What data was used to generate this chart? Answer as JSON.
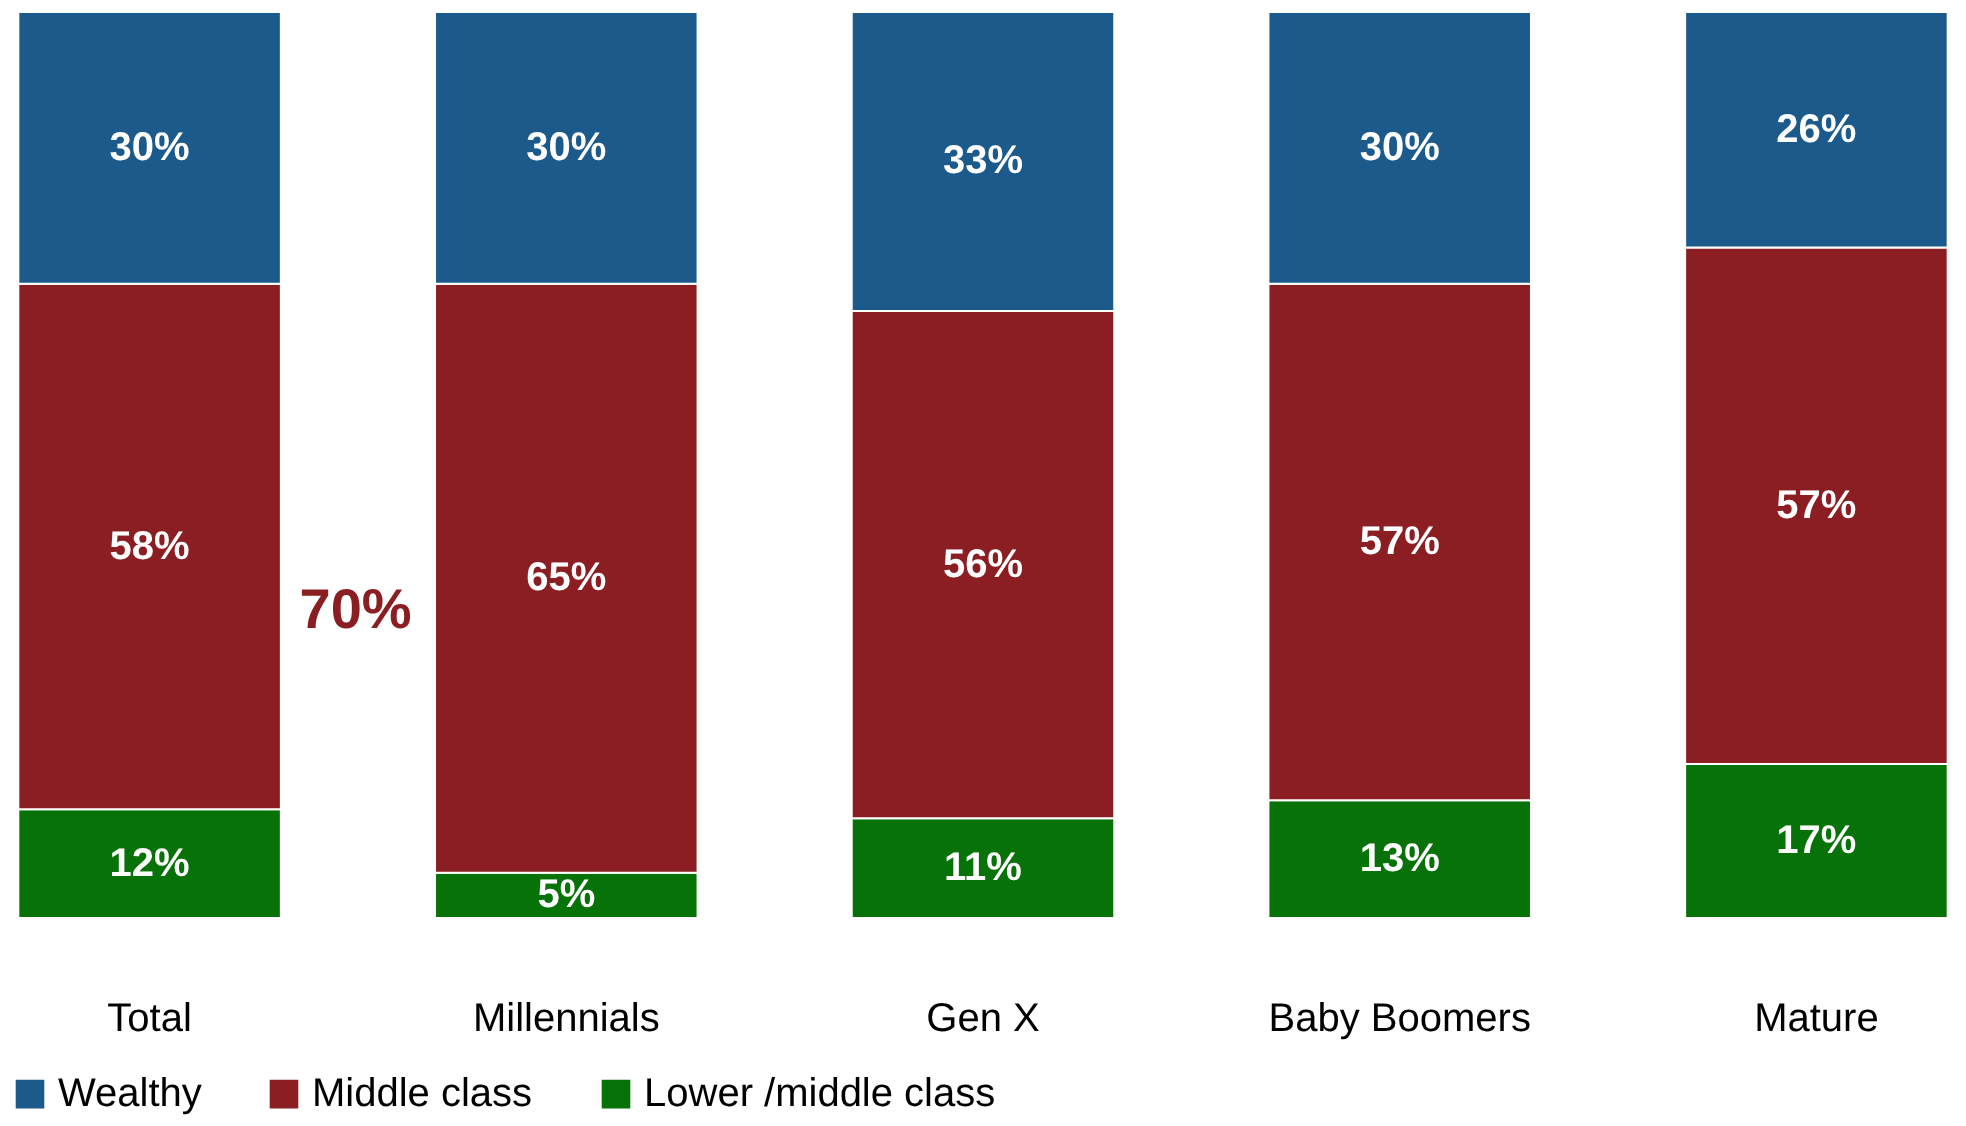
{
  "chart_data": {
    "type": "bar",
    "stacked": true,
    "legend": "bottom",
    "categories": [
      "Total",
      "Millennials",
      "Gen X",
      "Baby Boomers",
      "Mature"
    ],
    "series": [
      {
        "name": "Lower /middle class",
        "color": "#077207",
        "values": [
          12,
          5,
          11,
          13,
          17
        ],
        "value_labels": [
          "12%",
          "5%",
          "11%",
          "13%",
          "17%"
        ]
      },
      {
        "name": "Middle class",
        "color": "#8b1e22",
        "values": [
          58,
          65,
          56,
          57,
          57
        ],
        "value_labels": [
          "58%",
          "65%",
          "56%",
          "57%",
          "57%"
        ]
      },
      {
        "name": "Wealthy",
        "color": "#1b5a8a",
        "values": [
          30,
          30,
          33,
          30,
          26
        ],
        "value_labels": [
          "30%",
          "30%",
          "33%",
          "30%",
          "26%"
        ]
      }
    ],
    "annotations": [
      "70%"
    ]
  }
}
